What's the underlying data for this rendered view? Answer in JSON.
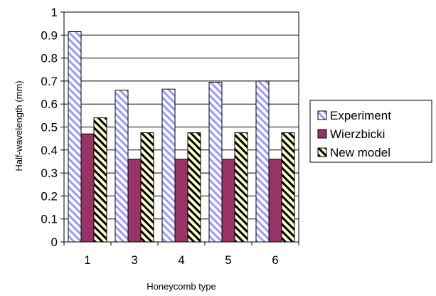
{
  "chart_data": {
    "type": "bar",
    "title": "",
    "xlabel": "Honeycomb type",
    "ylabel": "Half-wavelength (mm)",
    "ylim": [
      0,
      1
    ],
    "yticks": [
      "0",
      "0.1",
      "0.2",
      "0.3",
      "0.4",
      "0.5",
      "0.6",
      "0.7",
      "0.8",
      "0.9",
      "1"
    ],
    "grid": true,
    "legend_position": "right",
    "categories": [
      "1",
      "3",
      "4",
      "5",
      "6"
    ],
    "series": [
      {
        "name": "Experiment",
        "values": [
          0.915,
          0.66,
          0.665,
          0.695,
          0.7
        ],
        "color": "#9999ff",
        "pattern": "diagonal-stripes"
      },
      {
        "name": "Wierzbicki",
        "values": [
          0.47,
          0.36,
          0.36,
          0.36,
          0.36
        ],
        "color": "#993366",
        "pattern": "solid"
      },
      {
        "name": "New model",
        "values": [
          0.54,
          0.475,
          0.475,
          0.475,
          0.475
        ],
        "color": "#ffffcc",
        "pattern": "black-diagonal-stripes"
      }
    ]
  }
}
